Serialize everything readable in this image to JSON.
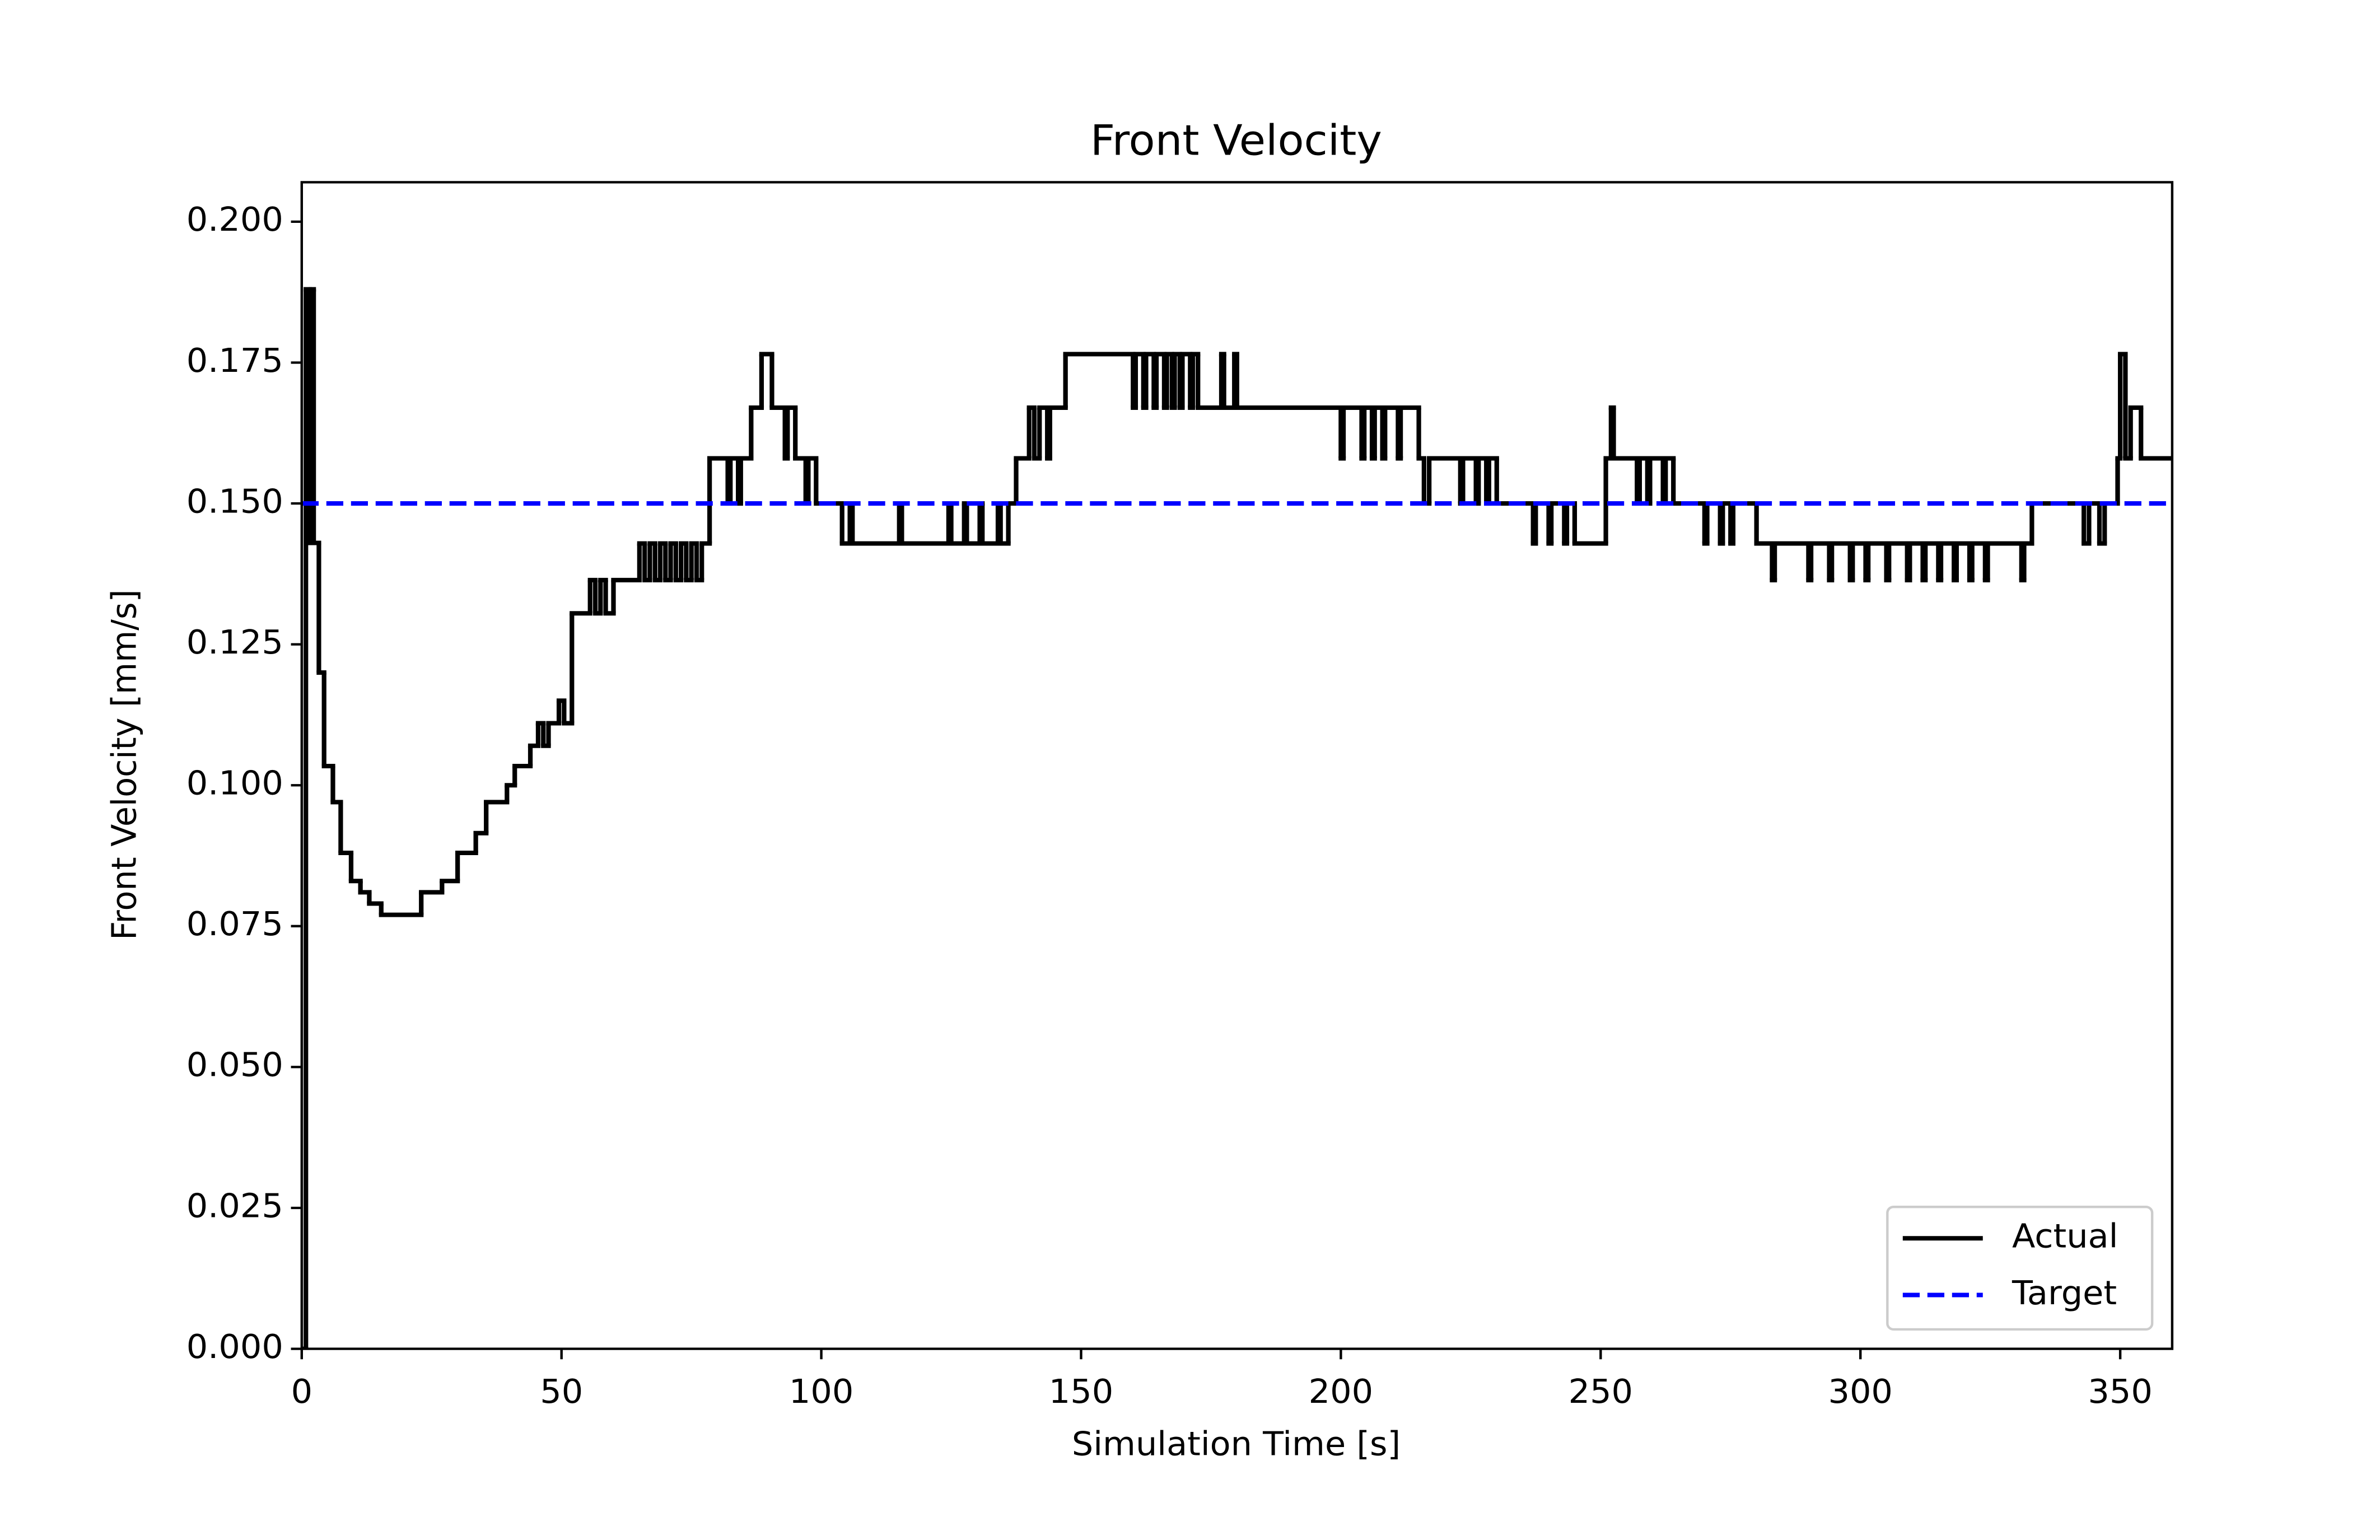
{
  "chart_data": {
    "type": "line",
    "title": "Front Velocity",
    "x_label": "Simulation Time [s]",
    "y_label": "Front Velocity [mm/s]",
    "drawstyle": "steps-post",
    "legend": "lower right",
    "xlim": [
      0,
      360
    ],
    "ylim": [
      0,
      0.207
    ],
    "xticks": [
      0,
      50,
      100,
      150,
      200,
      250,
      300,
      350
    ],
    "yticks": [
      {
        "value": 0,
        "label": "0.000"
      },
      0.025,
      {
        "value": 0.05,
        "label": "0.050"
      },
      0.075,
      {
        "value": 0.1,
        "label": "0.100"
      },
      0.125,
      {
        "value": 0.15,
        "label": "0.150"
      },
      0.175,
      {
        "value": 0.2,
        "label": "0.200"
      }
    ],
    "series": [
      {
        "name": "Actual",
        "color": "#000000",
        "dash": false,
        "x": [
          0,
          0.8,
          1.5,
          1.8,
          2.3,
          3.3,
          4.3,
          6,
          7.5,
          9.5,
          11.3,
          13,
          15.3,
          23,
          27,
          30,
          33.5,
          35.5,
          39.5,
          41,
          44,
          45.5,
          46.5,
          47.5,
          49.5,
          50.5,
          52,
          55.5,
          56.5,
          57.5,
          58.5,
          60,
          65,
          66,
          67,
          68,
          69,
          70,
          71,
          72,
          73,
          74,
          75,
          76,
          77,
          78.5,
          82,
          82.5,
          84,
          84.5,
          86.5,
          88.5,
          90.5,
          93,
          93.5,
          95,
          97,
          97.5,
          99,
          104,
          105.5,
          106,
          115,
          115.5,
          124.5,
          125,
          127.5,
          128,
          130.5,
          131,
          134,
          134.5,
          136,
          137.5,
          140,
          141,
          142,
          143.5,
          144,
          147,
          160,
          160.5,
          162,
          162.5,
          164,
          164.5,
          166,
          166.5,
          167.5,
          168,
          169,
          169.5,
          171,
          171.5,
          172.5,
          177,
          177.5,
          179.5,
          180,
          200,
          200.5,
          204,
          204.5,
          206,
          206.5,
          208,
          208.5,
          211,
          211.5,
          215,
          216,
          217,
          223,
          223.5,
          226,
          226.5,
          228,
          228.5,
          230,
          237,
          237.5,
          240,
          240.5,
          243,
          243.5,
          245,
          251,
          252,
          252.5,
          257,
          257.5,
          259,
          259.5,
          262,
          262.5,
          264,
          270,
          270.5,
          273,
          273.5,
          275,
          275.5,
          280,
          283,
          283.5,
          290,
          290.5,
          294,
          294.5,
          298,
          298.5,
          301,
          301.5,
          305,
          305.5,
          309,
          309.5,
          312,
          312.5,
          315,
          315.5,
          318,
          318.5,
          321,
          321.5,
          324,
          324.5,
          331,
          331.5,
          333,
          343,
          344,
          346,
          347,
          349.5,
          350,
          351,
          352,
          354,
          360
        ],
        "values": [
          0,
          0.188,
          0.143,
          0.188,
          0.143,
          0.12,
          0.1034,
          0.097,
          0.088,
          0.083,
          0.081,
          0.079,
          0.077,
          0.081,
          0.083,
          0.088,
          0.0915,
          0.097,
          0.1,
          0.1034,
          0.107,
          0.111,
          0.107,
          0.111,
          0.115,
          0.111,
          0.1305,
          0.1364,
          0.1305,
          0.1364,
          0.1305,
          0.1364,
          0.1429,
          0.1364,
          0.1429,
          0.1364,
          0.1429,
          0.1364,
          0.1429,
          0.1364,
          0.1429,
          0.1364,
          0.1429,
          0.1364,
          0.1429,
          0.158,
          0.15,
          0.158,
          0.15,
          0.158,
          0.167,
          0.1765,
          0.167,
          0.158,
          0.167,
          0.158,
          0.15,
          0.158,
          0.15,
          0.1429,
          0.15,
          0.1429,
          0.15,
          0.1429,
          0.15,
          0.1429,
          0.15,
          0.1429,
          0.15,
          0.1429,
          0.15,
          0.1429,
          0.15,
          0.158,
          0.167,
          0.158,
          0.167,
          0.158,
          0.167,
          0.1765,
          0.167,
          0.1765,
          0.167,
          0.1765,
          0.167,
          0.1765,
          0.167,
          0.1765,
          0.167,
          0.1765,
          0.167,
          0.1765,
          0.167,
          0.1765,
          0.167,
          0.1765,
          0.167,
          0.1765,
          0.167,
          0.158,
          0.167,
          0.158,
          0.167,
          0.158,
          0.167,
          0.158,
          0.167,
          0.158,
          0.167,
          0.158,
          0.15,
          0.158,
          0.15,
          0.158,
          0.15,
          0.158,
          0.15,
          0.158,
          0.15,
          0.1429,
          0.15,
          0.1429,
          0.15,
          0.1429,
          0.15,
          0.1429,
          0.158,
          0.167,
          0.158,
          0.15,
          0.158,
          0.15,
          0.158,
          0.15,
          0.158,
          0.15,
          0.1429,
          0.15,
          0.1429,
          0.15,
          0.1429,
          0.15,
          0.1429,
          0.1364,
          0.1429,
          0.1364,
          0.1429,
          0.1364,
          0.1429,
          0.1364,
          0.1429,
          0.1364,
          0.1429,
          0.1364,
          0.1429,
          0.1364,
          0.1429,
          0.1364,
          0.1429,
          0.1364,
          0.1429,
          0.1364,
          0.1429,
          0.1364,
          0.1429,
          0.1364,
          0.1429,
          0.1364,
          0.1429,
          0.15,
          0.1429,
          0.15,
          0.1429,
          0.15,
          0.158,
          0.1765,
          0.158,
          0.167,
          0.158,
          0.158
        ]
      },
      {
        "name": "Target",
        "color": "#0000ff",
        "dash": true,
        "x": [
          0,
          360
        ],
        "values": [
          0.15,
          0.15
        ]
      }
    ]
  }
}
